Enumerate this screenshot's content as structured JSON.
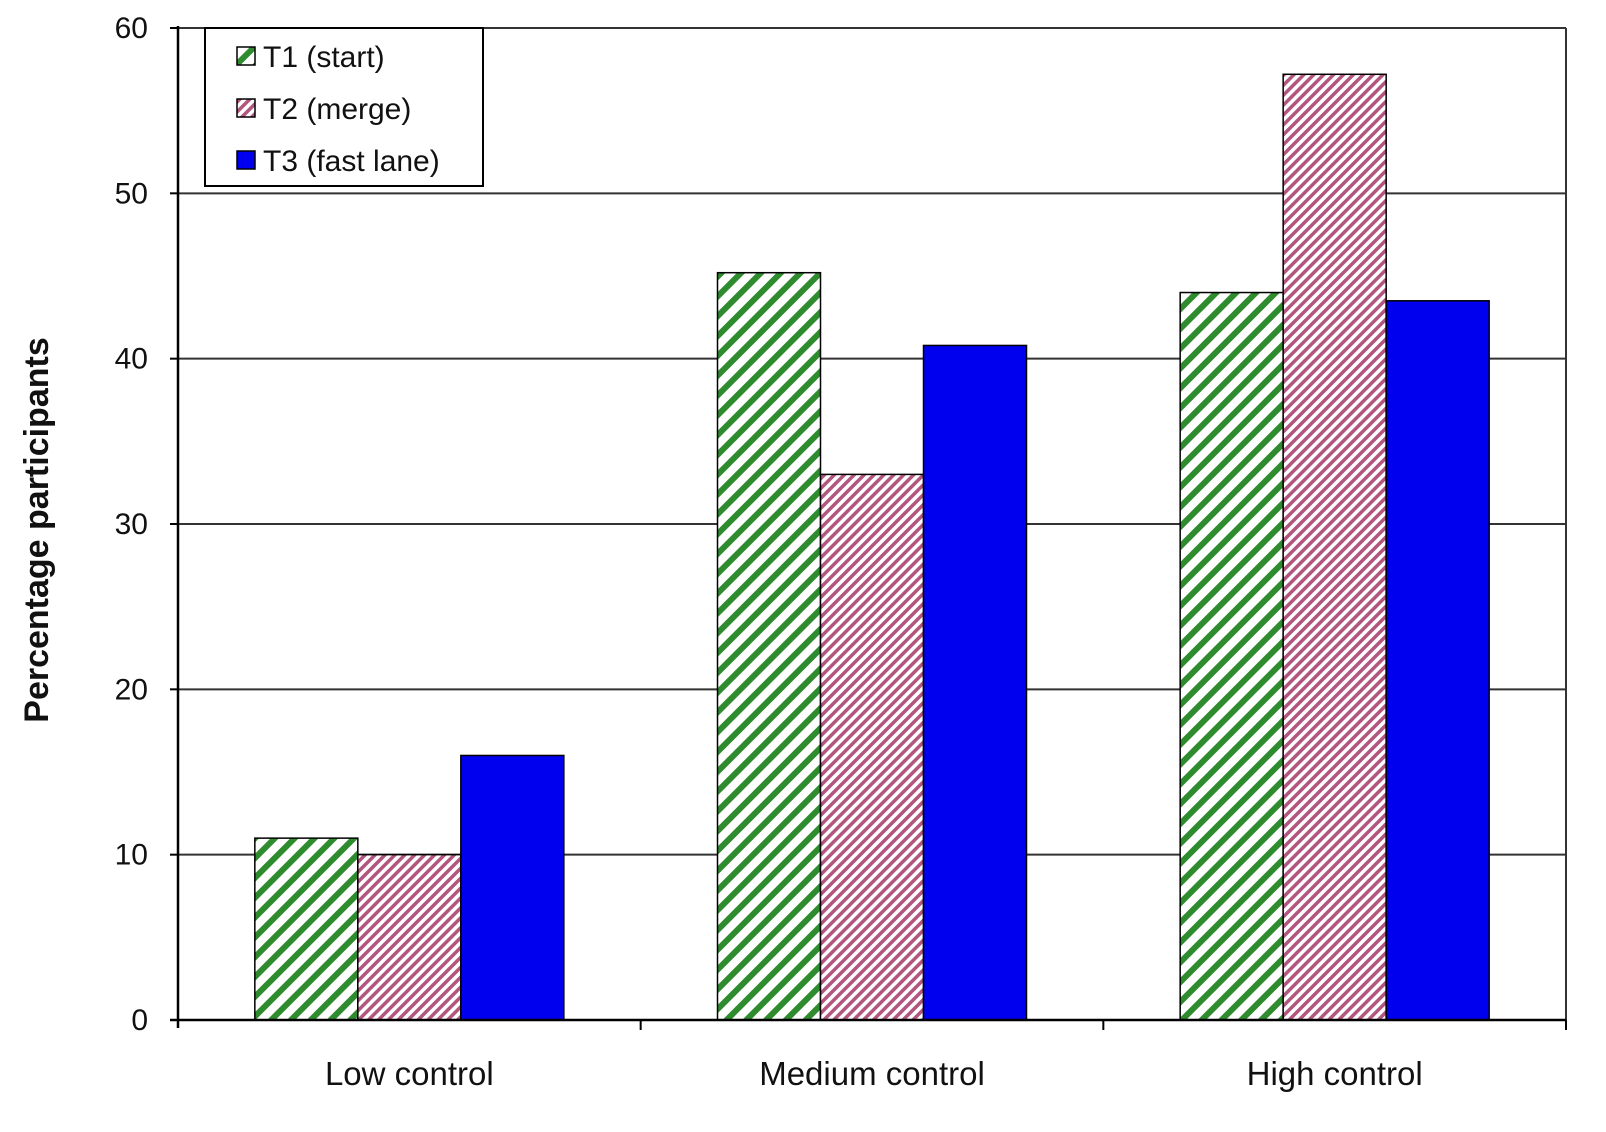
{
  "chart_data": {
    "type": "bar",
    "title": "",
    "xlabel": "",
    "ylabel": "Percentage participants",
    "ylim": [
      0,
      60
    ],
    "yticks": [
      0,
      10,
      20,
      30,
      40,
      50,
      60
    ],
    "grid": true,
    "legend_position": "top-left",
    "categories": [
      "Low control",
      "Medium control",
      "High control"
    ],
    "series": [
      {
        "name": "T1 (start)",
        "values": [
          11,
          45.2,
          44
        ],
        "pattern": "green-diagonal-hatch",
        "color": "#2e8b2e"
      },
      {
        "name": "T2 (merge)",
        "values": [
          10,
          33,
          57.2
        ],
        "pattern": "pink-diagonal-hatch",
        "color": "#c0608a"
      },
      {
        "name": "T3 (fast lane)",
        "values": [
          16,
          40.8,
          43.5
        ],
        "pattern": "solid",
        "color": "#0000ee"
      }
    ]
  }
}
